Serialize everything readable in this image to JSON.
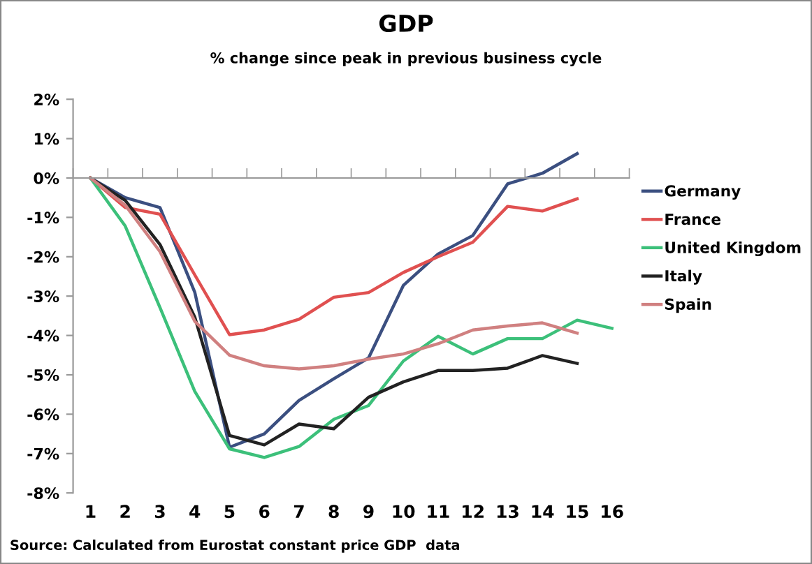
{
  "chart_data": {
    "type": "line",
    "title": "GDP",
    "subtitle": "% change since peak in previous business cycle",
    "annotations": [
      "Source: Calculated from Eurostat constant price GDP  data"
    ],
    "categories": [
      "1",
      "2",
      "3",
      "4",
      "5",
      "6",
      "7",
      "8",
      "9",
      "10",
      "11",
      "12",
      "13",
      "14",
      "15",
      "16"
    ],
    "series": [
      {
        "name": "Germany",
        "color": "#3b4f80",
        "values": [
          0,
          -0.5,
          -0.75,
          -2.9,
          -6.84,
          -6.5,
          -5.65,
          -5.1,
          -4.57,
          -2.73,
          -1.93,
          -1.46,
          -0.15,
          0.12,
          0.62,
          null
        ]
      },
      {
        "name": "France",
        "color": "#e05050",
        "values": [
          0,
          -0.75,
          -0.92,
          -2.46,
          -3.98,
          -3.86,
          -3.59,
          -3.03,
          -2.91,
          -2.4,
          -2.0,
          -1.63,
          -0.72,
          -0.84,
          -0.53,
          null
        ]
      },
      {
        "name": "United Kingdom",
        "color": "#3cc07a",
        "values": [
          0,
          -1.22,
          -3.29,
          -5.42,
          -6.88,
          -7.1,
          -6.82,
          -6.13,
          -5.78,
          -4.65,
          -4.02,
          -4.47,
          -4.08,
          -4.08,
          -3.61,
          -3.82
        ]
      },
      {
        "name": "Italy",
        "color": "#222222",
        "values": [
          0,
          -0.57,
          -1.69,
          -3.53,
          -6.54,
          -6.78,
          -6.25,
          -6.37,
          -5.57,
          -5.18,
          -4.89,
          -4.89,
          -4.83,
          -4.51,
          -4.71,
          null
        ]
      },
      {
        "name": "Spain",
        "color": "#d08080",
        "values": [
          0,
          -0.69,
          -1.87,
          -3.64,
          -4.5,
          -4.77,
          -4.85,
          -4.77,
          -4.6,
          -4.47,
          -4.21,
          -3.86,
          -3.76,
          -3.68,
          -3.94,
          null
        ]
      }
    ],
    "ylim": [
      -8,
      2
    ],
    "yticks": [
      {
        "value": 2,
        "label": "2%"
      },
      {
        "value": 1,
        "label": "1%"
      },
      {
        "value": 0,
        "label": "0%"
      },
      {
        "value": -1,
        "label": "-1%"
      },
      {
        "value": -2,
        "label": "-2%"
      },
      {
        "value": -3,
        "label": "-3%"
      },
      {
        "value": -4,
        "label": "-4%"
      },
      {
        "value": -5,
        "label": "-5%"
      },
      {
        "value": -6,
        "label": "-6%"
      },
      {
        "value": -7,
        "label": "-7%"
      },
      {
        "value": -8,
        "label": "-8%"
      }
    ],
    "legend": "right",
    "marker": "none",
    "line_style": "solid"
  }
}
